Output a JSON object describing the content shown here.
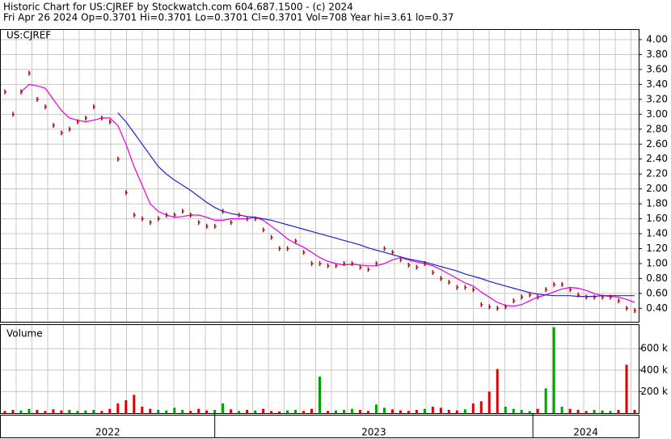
{
  "chart_data": {
    "type": "stock",
    "title": "Historic Chart for US:CJREF by Stockwatch.com 604.687.1500 - (c) 2024",
    "subtitle": "Fri Apr 26 2024  Op=0.3701  Hi=0.3701  Lo=0.3701  Cl=0.3701  Vol=708  Year hi=3.61  lo=0.37",
    "symbol_label": "US:CJREF",
    "volume_label": "Volume",
    "grid": true,
    "xlim": [
      -0.5,
      78.5
    ],
    "periods": [
      {
        "label": "2022",
        "start": -0.5,
        "end": 26
      },
      {
        "label": "2023",
        "start": 26,
        "end": 65.4
      },
      {
        "label": "2024",
        "start": 65.4,
        "end": 78.5
      }
    ],
    "ylim": [
      0.22,
      4.13
    ],
    "yticks": [
      {
        "value": 0.4,
        "label": "0.40"
      },
      {
        "value": 0.6,
        "label": "0.60"
      },
      {
        "value": 0.8,
        "label": "0.80"
      },
      {
        "value": 1,
        "label": "1.00"
      },
      {
        "value": 1.2,
        "label": "1.20"
      },
      {
        "value": 1.4,
        "label": "1.40"
      },
      {
        "value": 1.6,
        "label": "1.60"
      },
      {
        "value": 1.8,
        "label": "1.80"
      },
      {
        "value": 2,
        "label": "2.00"
      },
      {
        "value": 2.2,
        "label": "2.20"
      },
      {
        "value": 2.4,
        "label": "2.40"
      },
      {
        "value": 2.6,
        "label": "2.60"
      },
      {
        "value": 2.8,
        "label": "2.80"
      },
      {
        "value": 3,
        "label": "3.00"
      },
      {
        "value": 3.2,
        "label": "3.20"
      },
      {
        "value": 3.4,
        "label": "3.40"
      },
      {
        "value": 3.6,
        "label": "3.60"
      },
      {
        "value": 3.8,
        "label": "3.80"
      },
      {
        "value": 4,
        "label": "4.00"
      }
    ],
    "price_color": "#cc0000",
    "prices": [
      3.3,
      3.0,
      3.3,
      3.55,
      3.2,
      3.1,
      2.85,
      2.75,
      2.8,
      2.9,
      2.95,
      3.1,
      2.95,
      2.9,
      2.4,
      1.95,
      1.65,
      1.6,
      1.55,
      1.6,
      1.65,
      1.65,
      1.7,
      1.65,
      1.55,
      1.5,
      1.5,
      1.7,
      1.55,
      1.65,
      1.6,
      1.6,
      1.45,
      1.35,
      1.2,
      1.2,
      1.3,
      1.15,
      1.0,
      1.0,
      0.97,
      0.97,
      1.0,
      1.0,
      0.95,
      0.92,
      1.0,
      1.2,
      1.15,
      1.05,
      0.98,
      0.95,
      1.0,
      0.88,
      0.8,
      0.75,
      0.68,
      0.68,
      0.65,
      0.45,
      0.42,
      0.4,
      0.42,
      0.5,
      0.55,
      0.58,
      0.55,
      0.65,
      0.72,
      0.72,
      0.65,
      0.58,
      0.55,
      0.55,
      0.55,
      0.55,
      0.5,
      0.4,
      0.37
    ],
    "averages": [
      {
        "color": "#e000e0",
        "values": [
          null,
          null,
          3.3,
          3.4,
          3.38,
          3.35,
          3.2,
          3.05,
          2.95,
          2.92,
          2.9,
          2.92,
          2.95,
          2.95,
          2.85,
          2.6,
          2.3,
          2.05,
          1.8,
          1.7,
          1.65,
          1.62,
          1.63,
          1.65,
          1.65,
          1.62,
          1.58,
          1.58,
          1.6,
          1.6,
          1.6,
          1.62,
          1.58,
          1.5,
          1.42,
          1.33,
          1.27,
          1.22,
          1.15,
          1.08,
          1.03,
          1.0,
          0.98,
          0.99,
          0.98,
          0.97,
          0.97,
          1.0,
          1.05,
          1.08,
          1.05,
          1.02,
          1.0,
          0.97,
          0.92,
          0.86,
          0.8,
          0.74,
          0.7,
          0.62,
          0.55,
          0.48,
          0.44,
          0.43,
          0.45,
          0.5,
          0.55,
          0.58,
          0.62,
          0.66,
          0.68,
          0.67,
          0.64,
          0.6,
          0.57,
          0.56,
          0.55,
          0.52,
          0.48
        ]
      },
      {
        "color": "#2020d0",
        "values": [
          null,
          null,
          null,
          null,
          null,
          null,
          null,
          null,
          null,
          null,
          null,
          null,
          null,
          null,
          3.02,
          2.9,
          2.75,
          2.6,
          2.45,
          2.3,
          2.2,
          2.12,
          2.05,
          1.98,
          1.9,
          1.82,
          1.75,
          1.7,
          1.67,
          1.65,
          1.63,
          1.62,
          1.6,
          1.58,
          1.55,
          1.52,
          1.49,
          1.46,
          1.43,
          1.4,
          1.37,
          1.34,
          1.31,
          1.28,
          1.25,
          1.21,
          1.18,
          1.15,
          1.12,
          1.09,
          1.06,
          1.04,
          1.02,
          0.99,
          0.96,
          0.93,
          0.9,
          0.86,
          0.83,
          0.8,
          0.76,
          0.73,
          0.7,
          0.67,
          0.64,
          0.61,
          0.59,
          0.58,
          0.57,
          0.57,
          0.57,
          0.56,
          0.56,
          0.56,
          0.57,
          0.57,
          0.57,
          0.57,
          0.57
        ]
      }
    ],
    "volume": [
      20000,
      30000,
      25000,
      40000,
      30000,
      20000,
      35000,
      25000,
      30000,
      20000,
      25000,
      30000,
      20000,
      40000,
      90000,
      120000,
      170000,
      60000,
      40000,
      30000,
      25000,
      50000,
      30000,
      20000,
      40000,
      25000,
      30000,
      90000,
      35000,
      20000,
      30000,
      25000,
      40000,
      20000,
      15000,
      25000,
      30000,
      20000,
      40000,
      340000,
      20000,
      25000,
      30000,
      40000,
      30000,
      20000,
      80000,
      50000,
      35000,
      25000,
      20000,
      30000,
      40000,
      60000,
      50000,
      30000,
      25000,
      35000,
      90000,
      110000,
      200000,
      410000,
      60000,
      40000,
      30000,
      20000,
      40000,
      230000,
      800000,
      60000,
      40000,
      30000,
      20000,
      30000,
      25000,
      20000,
      30000,
      450000,
      30000
    ],
    "volume_up_color": "#00a000",
    "volume_down_color": "#dd0000",
    "vlim": [
      0,
      820000
    ],
    "vticks": [
      {
        "value": 200000,
        "label": "200 k"
      },
      {
        "value": 400000,
        "label": "400 k"
      },
      {
        "value": 600000,
        "label": "600 k"
      }
    ]
  }
}
